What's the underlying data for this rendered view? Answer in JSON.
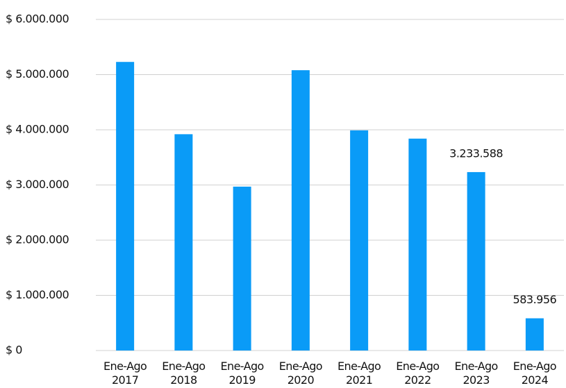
{
  "chart_data": {
    "type": "bar",
    "categories": [
      "Ene-Ago 2017",
      "Ene-Ago 2018",
      "Ene-Ago 2019",
      "Ene-Ago 2020",
      "Ene-Ago 2021",
      "Ene-Ago 2022",
      "Ene-Ago 2023",
      "Ene-Ago 2024"
    ],
    "values": [
      5230000,
      3920000,
      2970000,
      5080000,
      3990000,
      3840000,
      3233588,
      583956
    ],
    "value_labels": [
      null,
      null,
      null,
      null,
      null,
      null,
      "3.233.588",
      "583.956"
    ],
    "color": "#0a9bf7",
    "ylim": [
      0,
      6000000
    ],
    "yticks": [
      {
        "value": 0,
        "label": "$ 0"
      },
      {
        "value": 1000000,
        "label": "$ 1.000.000"
      },
      {
        "value": 2000000,
        "label": "$ 2.000.000"
      },
      {
        "value": 3000000,
        "label": "$ 3.000.000"
      },
      {
        "value": 4000000,
        "label": "$ 4.000.000"
      },
      {
        "value": 5000000,
        "label": "$ 5.000.000"
      },
      {
        "value": 6000000,
        "label": "$ 6.000.000"
      }
    ],
    "grid": true
  }
}
